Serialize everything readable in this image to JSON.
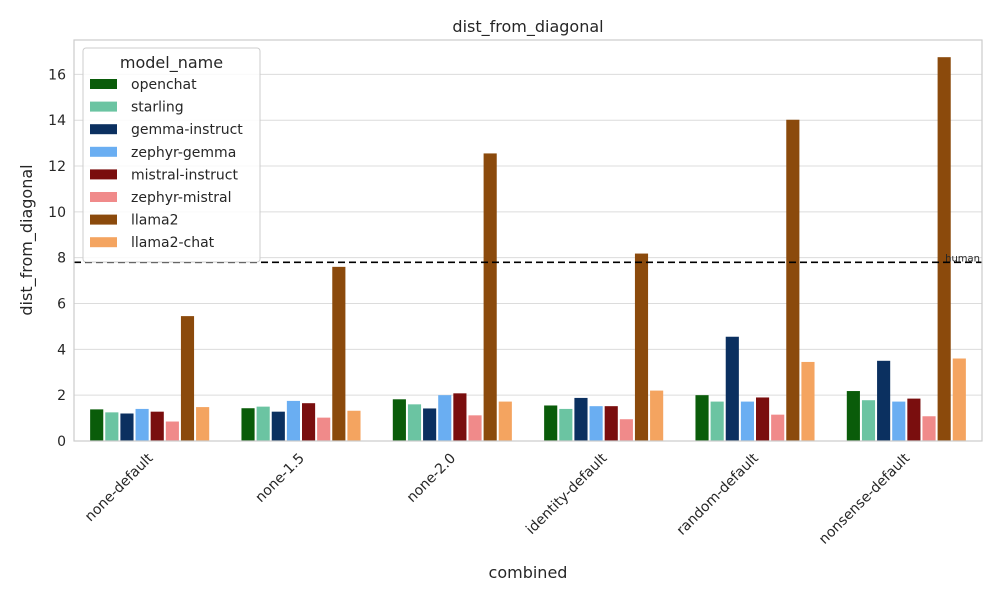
{
  "chart_data": {
    "type": "bar",
    "title": "dist_from_diagonal",
    "xlabel": "combined",
    "ylabel": "dist_from_diagonal",
    "ylim": [
      0,
      17.5
    ],
    "yticks": [
      0,
      2,
      4,
      6,
      8,
      10,
      12,
      14,
      16
    ],
    "grid": true,
    "legend": {
      "title": "model_name",
      "placement": "top-left"
    },
    "categories": [
      "none-default",
      "none-1.5",
      "none-2.0",
      "identity-default",
      "random-default",
      "nonsense-default"
    ],
    "series": [
      {
        "name": "openchat",
        "color": "#0a5c0a",
        "values": [
          1.38,
          1.43,
          1.82,
          1.55,
          2.0,
          2.18
        ]
      },
      {
        "name": "starling",
        "color": "#6bc4a2",
        "values": [
          1.25,
          1.5,
          1.6,
          1.4,
          1.72,
          1.78
        ]
      },
      {
        "name": "gemma-instruct",
        "color": "#0b3060",
        "values": [
          1.2,
          1.28,
          1.42,
          1.88,
          4.55,
          3.5
        ]
      },
      {
        "name": "zephyr-gemma",
        "color": "#6aaef2",
        "values": [
          1.4,
          1.75,
          2.0,
          1.52,
          1.72,
          1.72
        ]
      },
      {
        "name": "mistral-instruct",
        "color": "#7a0e0e",
        "values": [
          1.28,
          1.65,
          2.08,
          1.52,
          1.9,
          1.85
        ]
      },
      {
        "name": "zephyr-mistral",
        "color": "#f08a8a",
        "values": [
          0.85,
          1.02,
          1.12,
          0.95,
          1.15,
          1.08
        ]
      },
      {
        "name": "llama2",
        "color": "#8b4a0c",
        "values": [
          5.45,
          7.6,
          12.55,
          8.18,
          14.02,
          16.75
        ]
      },
      {
        "name": "llama2-chat",
        "color": "#f4a460",
        "values": [
          1.48,
          1.32,
          1.72,
          2.2,
          3.45,
          3.6
        ]
      }
    ],
    "reference_line": {
      "label": "human",
      "value": 7.8,
      "style": "dashed",
      "color": "#000000"
    }
  }
}
